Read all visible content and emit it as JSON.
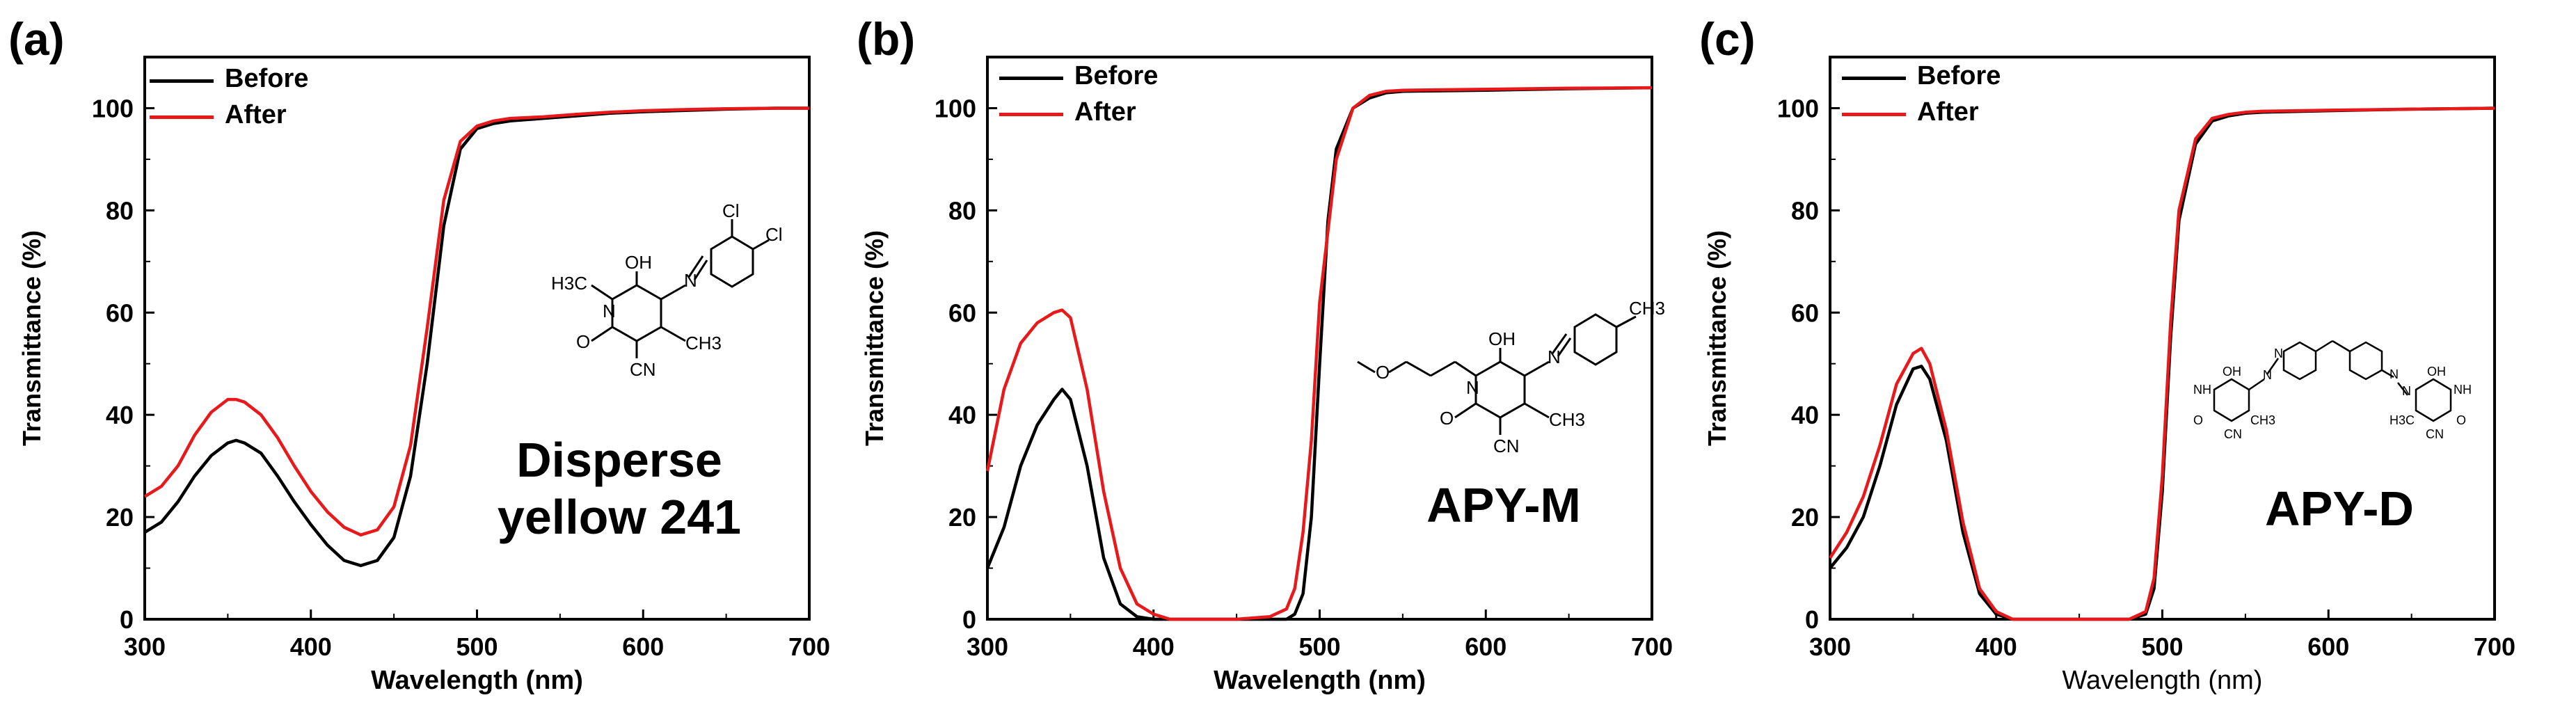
{
  "colors": {
    "before": "#000000",
    "after": "#e8191b",
    "axis": "#000000"
  },
  "chart_data": [
    {
      "panel": "(a)",
      "type": "line",
      "compound": "Disperse yellow 241",
      "compound_lines": [
        "Disperse",
        "yellow 241"
      ],
      "xlabel": "Wavelength (nm)",
      "ylabel": "Transmittance (%)",
      "xlim": [
        300,
        700
      ],
      "ylim": [
        0,
        110
      ],
      "xticks": [
        300,
        400,
        500,
        600,
        700
      ],
      "yticks": [
        0,
        20,
        40,
        60,
        80,
        100
      ],
      "legend": [
        "Before",
        "After"
      ],
      "series": [
        {
          "name": "Before",
          "x": [
            300,
            310,
            320,
            330,
            340,
            350,
            355,
            360,
            370,
            380,
            390,
            400,
            410,
            420,
            430,
            440,
            450,
            460,
            470,
            480,
            490,
            500,
            510,
            520,
            540,
            560,
            580,
            600,
            620,
            650,
            680,
            700
          ],
          "values": [
            17,
            19,
            23,
            28,
            32,
            34.5,
            35,
            34.5,
            32.5,
            28,
            23,
            18.5,
            14.5,
            11.5,
            10.5,
            11.5,
            16,
            28,
            50,
            77,
            92,
            96,
            97,
            97.5,
            98,
            98.5,
            99,
            99.3,
            99.5,
            99.8,
            100,
            100
          ]
        },
        {
          "name": "After",
          "x": [
            300,
            310,
            320,
            330,
            340,
            350,
            355,
            360,
            370,
            380,
            390,
            400,
            410,
            420,
            430,
            440,
            450,
            460,
            470,
            480,
            490,
            500,
            510,
            520,
            540,
            560,
            580,
            600,
            620,
            650,
            680,
            700
          ],
          "values": [
            24,
            26,
            30,
            36,
            40.5,
            43,
            43,
            42.5,
            40,
            35.5,
            30,
            25,
            21,
            18,
            16.5,
            17.5,
            22,
            34,
            57,
            82,
            93.5,
            96.5,
            97.5,
            98,
            98.3,
            98.8,
            99.2,
            99.5,
            99.7,
            99.9,
            100,
            100
          ]
        }
      ]
    },
    {
      "panel": "(b)",
      "type": "line",
      "compound": "APY-M",
      "compound_lines": [
        "APY-M"
      ],
      "xlabel": "Wavelength (nm)",
      "ylabel": "Transmittance (%)",
      "xlim": [
        300,
        700
      ],
      "ylim": [
        0,
        110
      ],
      "xticks": [
        300,
        400,
        500,
        600,
        700
      ],
      "yticks": [
        0,
        20,
        40,
        60,
        80,
        100
      ],
      "legend": [
        "Before",
        "After"
      ],
      "series": [
        {
          "name": "Before",
          "x": [
            300,
            310,
            320,
            330,
            340,
            345,
            350,
            360,
            370,
            380,
            390,
            400,
            420,
            450,
            480,
            485,
            490,
            495,
            500,
            505,
            510,
            520,
            530,
            540,
            550,
            600,
            650,
            700
          ],
          "values": [
            10,
            18,
            30,
            38,
            43,
            45,
            43,
            30,
            12,
            3,
            0.5,
            0,
            0,
            0,
            0,
            1,
            5,
            20,
            50,
            78,
            92,
            100,
            102,
            103,
            103.3,
            103.5,
            103.8,
            104
          ]
        },
        {
          "name": "After",
          "x": [
            300,
            310,
            320,
            330,
            340,
            345,
            350,
            360,
            370,
            380,
            390,
            400,
            410,
            420,
            450,
            470,
            480,
            485,
            490,
            495,
            500,
            510,
            520,
            530,
            540,
            550,
            600,
            650,
            700
          ],
          "values": [
            29,
            45,
            54,
            58,
            60,
            60.5,
            59,
            45,
            25,
            10,
            3,
            1,
            0,
            0,
            0,
            0.5,
            2,
            6,
            17,
            35,
            62,
            90,
            100,
            102.5,
            103.3,
            103.5,
            103.7,
            103.9,
            104
          ]
        }
      ]
    },
    {
      "panel": "(c)",
      "type": "line",
      "compound": "APY-D",
      "compound_lines": [
        "APY-D"
      ],
      "xlabel": "Wavelength (nm)",
      "ylabel": "Transmittance (%)",
      "xlim": [
        300,
        700
      ],
      "ylim": [
        0,
        110
      ],
      "xticks": [
        300,
        400,
        500,
        600,
        700
      ],
      "yticks": [
        0,
        20,
        40,
        60,
        80,
        100
      ],
      "legend": [
        "Before",
        "After"
      ],
      "series": [
        {
          "name": "Before",
          "x": [
            300,
            310,
            320,
            330,
            340,
            350,
            355,
            360,
            370,
            380,
            390,
            400,
            410,
            450,
            480,
            490,
            495,
            500,
            505,
            510,
            520,
            530,
            540,
            550,
            560,
            600,
            650,
            700
          ],
          "values": [
            10,
            14,
            20,
            30,
            42,
            49,
            49.5,
            47,
            35,
            17,
            5,
            1,
            0,
            0,
            0,
            1,
            6,
            25,
            55,
            78,
            93,
            97.5,
            98.5,
            99,
            99.2,
            99.5,
            99.8,
            100
          ]
        },
        {
          "name": "After",
          "x": [
            300,
            310,
            320,
            330,
            340,
            350,
            355,
            360,
            370,
            380,
            390,
            400,
            410,
            450,
            480,
            490,
            495,
            500,
            505,
            510,
            520,
            530,
            540,
            550,
            560,
            600,
            650,
            700
          ],
          "values": [
            12,
            17,
            24,
            34,
            46,
            52,
            53,
            50,
            37,
            19,
            6,
            1.5,
            0,
            0,
            0,
            1.5,
            8,
            28,
            58,
            80,
            94,
            98,
            98.8,
            99.2,
            99.4,
            99.6,
            99.8,
            100
          ]
        }
      ]
    }
  ],
  "structure_labels": {
    "a": {
      "cl1": "Cl",
      "cl2": "Cl",
      "oh": "OH",
      "n1": "N",
      "n2": "N",
      "ch3n": "H3C",
      "ch3": "CH3",
      "o": "O",
      "cn": "CN",
      "nring": "N"
    },
    "b": {
      "ch3": "CH3",
      "oh": "OH",
      "n1": "N",
      "n2": "N",
      "o_ether": "O",
      "nring": "N",
      "o": "O",
      "cn": "CN",
      "ch3b": "CH3"
    },
    "c": {
      "oh1": "OH",
      "nh1": "NH",
      "o1": "O",
      "cn1": "CN",
      "ch3a": "CH3",
      "n1": "N",
      "n2": "N",
      "oh2": "OH",
      "nh2": "NH",
      "o2": "O",
      "cn2": "CN",
      "ch3b": "H3C",
      "n3": "N",
      "n4": "N"
    }
  }
}
